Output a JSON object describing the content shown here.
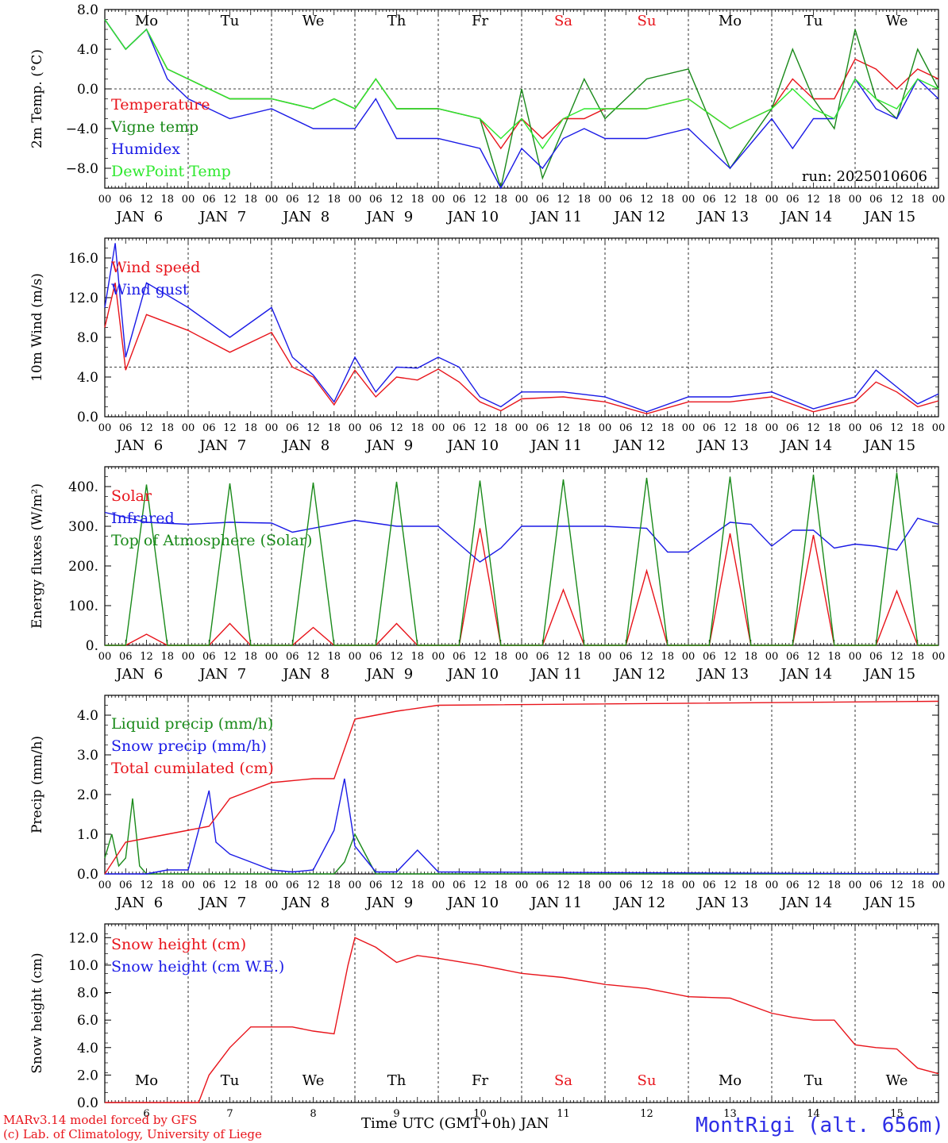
{
  "colors": {
    "red": "#e8141b",
    "green": "#1a8a1a",
    "blue": "#1a1ae6",
    "lightgreen": "#2ee82e",
    "grid": "#000000"
  },
  "time_axis": {
    "hour_ticks": [
      "00",
      "06",
      "12",
      "18"
    ],
    "date_labels": [
      "JAN  6",
      "JAN  7",
      "JAN  8",
      "JAN  9",
      "JAN 10",
      "JAN 11",
      "JAN 12",
      "JAN 13",
      "JAN 14",
      "JAN 15"
    ],
    "weekdays": [
      "Mo",
      "Tu",
      "We",
      "Th",
      "Fr",
      "Sa",
      "Su",
      "Mo",
      "Tu",
      "We"
    ],
    "weekday_colors": [
      "#000000",
      "#000000",
      "#000000",
      "#000000",
      "#000000",
      "#e8141b",
      "#e8141b",
      "#000000",
      "#000000",
      "#000000"
    ],
    "bottom_days": [
      "6",
      "7",
      "8",
      "9",
      "10",
      "11",
      "12",
      "13",
      "14",
      "15"
    ],
    "xlabel": "Time UTC (GMT+0h) JAN"
  },
  "footer": {
    "credit_line1": "MARv3.14 model forced by GFS",
    "credit_line2": "(c) Lab. of Climatology, University of Liege",
    "station": "MontRigi (alt. 656m)"
  },
  "chart_data": [
    {
      "type": "line",
      "ylabel": "2m Temp. (°C)",
      "ylim": [
        -10,
        8
      ],
      "yticks": [
        "8.0",
        "4.0",
        "0.0",
        "−4.0",
        "−8.0"
      ],
      "ytick_values": [
        8,
        4,
        0,
        -4,
        -8
      ],
      "run_label": "run: 2025010606",
      "dashed_ref": 0,
      "series": [
        {
          "name": "Temperature",
          "color": "red",
          "x": [
            0,
            6,
            12,
            18,
            24,
            36,
            48,
            60,
            66,
            72,
            78,
            84,
            96,
            108,
            114,
            120,
            126,
            132,
            138,
            144,
            156,
            168,
            180,
            192,
            198,
            204,
            210,
            216,
            222,
            228,
            234,
            240
          ],
          "y": [
            7,
            4,
            6,
            2,
            1,
            -1,
            -1,
            -2,
            -1,
            -2,
            1,
            -2,
            -2,
            -3,
            -6,
            -3,
            -5,
            -3,
            -3,
            -2,
            -2,
            -1,
            -4,
            -2,
            1,
            -1,
            -1,
            3,
            2,
            0,
            2,
            1
          ]
        },
        {
          "name": "Vigne temp",
          "color": "green",
          "x": [
            0,
            6,
            12,
            18,
            24,
            36,
            48,
            60,
            66,
            72,
            78,
            84,
            96,
            108,
            114,
            120,
            126,
            132,
            138,
            144,
            156,
            168,
            180,
            192,
            198,
            204,
            210,
            216,
            222,
            228,
            234,
            240
          ],
          "y": [
            7,
            4,
            6,
            2,
            1,
            -1,
            -1,
            -2,
            -1,
            -2,
            1,
            -2,
            -2,
            -3,
            -10,
            0,
            -9,
            -4,
            1,
            -3,
            1,
            2,
            -8,
            -2,
            4,
            -1,
            -4,
            6,
            -1,
            -3,
            4,
            0
          ]
        },
        {
          "name": "Humidex",
          "color": "blue",
          "x": [
            0,
            6,
            12,
            18,
            24,
            36,
            48,
            60,
            66,
            72,
            78,
            84,
            96,
            108,
            114,
            120,
            126,
            132,
            138,
            144,
            156,
            168,
            180,
            192,
            198,
            204,
            210,
            216,
            222,
            228,
            234,
            240
          ],
          "y": [
            7,
            4,
            6,
            1,
            -1,
            -3,
            -2,
            -4,
            -4,
            -4,
            -1,
            -5,
            -5,
            -6,
            -10,
            -6,
            -8,
            -5,
            -4,
            -5,
            -5,
            -4,
            -8,
            -3,
            -6,
            -3,
            -3,
            1,
            -2,
            -3,
            1,
            -1
          ]
        },
        {
          "name": "DewPoint Temp",
          "color": "lightgreen",
          "x": [
            0,
            6,
            12,
            18,
            24,
            36,
            48,
            60,
            66,
            72,
            78,
            84,
            96,
            108,
            114,
            120,
            126,
            132,
            138,
            144,
            156,
            168,
            180,
            192,
            198,
            204,
            210,
            216,
            222,
            228,
            234,
            240
          ],
          "y": [
            7,
            4,
            6,
            2,
            1,
            -1,
            -1,
            -2,
            -1,
            -2,
            1,
            -2,
            -2,
            -3,
            -5,
            -3,
            -6,
            -3,
            -2,
            -2,
            -2,
            -1,
            -4,
            -2,
            0,
            -2,
            -3,
            1,
            -1,
            -2,
            1,
            0
          ]
        }
      ]
    },
    {
      "type": "line",
      "ylabel": "10m Wind (m/s)",
      "ylim": [
        0,
        18
      ],
      "yticks": [
        "16.0",
        "12.0",
        "8.0",
        "4.0",
        "0.0"
      ],
      "ytick_values": [
        16,
        12,
        8,
        4,
        0
      ],
      "dashed_ref": 5,
      "series": [
        {
          "name": "Wind speed",
          "color": "red",
          "x": [
            0,
            3,
            6,
            12,
            24,
            36,
            48,
            54,
            60,
            66,
            72,
            78,
            84,
            90,
            96,
            102,
            108,
            114,
            120,
            132,
            144,
            156,
            168,
            180,
            192,
            204,
            216,
            222,
            228,
            234,
            240
          ],
          "y": [
            9,
            13.5,
            4.7,
            10.3,
            8.7,
            6.5,
            8.5,
            5,
            4,
            1.2,
            4.7,
            2,
            4,
            3.7,
            4.8,
            3.5,
            1.5,
            0.6,
            1.8,
            2,
            1.5,
            0.3,
            1.5,
            1.5,
            2,
            0.5,
            1.5,
            3.5,
            2.5,
            1,
            1.6
          ]
        },
        {
          "name": "Wind gust",
          "color": "blue",
          "x": [
            0,
            3,
            6,
            12,
            24,
            36,
            48,
            54,
            60,
            66,
            72,
            78,
            84,
            90,
            96,
            102,
            108,
            114,
            120,
            132,
            144,
            156,
            168,
            180,
            192,
            204,
            216,
            222,
            228,
            234,
            240
          ],
          "y": [
            11,
            17.5,
            6,
            13.5,
            11,
            8,
            11,
            6,
            4.2,
            1.5,
            6,
            2.5,
            5,
            4.9,
            6,
            5,
            2,
            1,
            2.5,
            2.5,
            2,
            0.5,
            2,
            2,
            2.5,
            0.8,
            2,
            4.7,
            3,
            1.3,
            2.3
          ]
        }
      ]
    },
    {
      "type": "line",
      "ylabel": "Energy fluxes (W/m²)",
      "ylim": [
        0,
        450
      ],
      "yticks": [
        "400.",
        "300.",
        "200.",
        "100.",
        "0."
      ],
      "ytick_values": [
        400,
        300,
        200,
        100,
        0
      ],
      "series": [
        {
          "name": "Solar",
          "color": "red",
          "x": [
            0,
            6,
            12,
            18,
            24,
            30,
            36,
            42,
            48,
            54,
            60,
            66,
            72,
            78,
            84,
            90,
            96,
            102,
            108,
            114,
            120,
            126,
            132,
            138,
            144,
            150,
            156,
            162,
            168,
            174,
            180,
            186,
            192,
            198,
            204,
            210,
            216,
            222,
            228,
            234,
            240
          ],
          "y": [
            0,
            0,
            28,
            0,
            0,
            0,
            55,
            0,
            0,
            0,
            45,
            0,
            0,
            0,
            55,
            0,
            0,
            0,
            295,
            0,
            0,
            0,
            140,
            0,
            0,
            0,
            188,
            0,
            0,
            0,
            282,
            0,
            0,
            0,
            278,
            0,
            0,
            0,
            137,
            0,
            0
          ]
        },
        {
          "name": "Infrared",
          "color": "blue",
          "x": [
            0,
            12,
            24,
            36,
            48,
            54,
            72,
            84,
            96,
            102,
            108,
            114,
            120,
            132,
            144,
            156,
            162,
            168,
            180,
            186,
            192,
            198,
            204,
            210,
            216,
            222,
            228,
            234,
            240
          ],
          "y": [
            335,
            310,
            305,
            310,
            308,
            285,
            315,
            300,
            300,
            255,
            210,
            245,
            300,
            300,
            300,
            295,
            235,
            235,
            310,
            305,
            250,
            290,
            290,
            245,
            255,
            250,
            240,
            320,
            305
          ]
        },
        {
          "name": "Top of Atmosphere (Solar)",
          "color": "green",
          "x": [
            0,
            6,
            12,
            18,
            24,
            30,
            36,
            42,
            48,
            54,
            60,
            66,
            72,
            78,
            84,
            90,
            96,
            102,
            108,
            114,
            120,
            126,
            132,
            138,
            144,
            150,
            156,
            162,
            168,
            174,
            180,
            186,
            192,
            198,
            204,
            210,
            216,
            222,
            228,
            234,
            240
          ],
          "y": [
            0,
            0,
            405,
            0,
            0,
            0,
            408,
            0,
            0,
            0,
            410,
            0,
            0,
            0,
            412,
            0,
            0,
            0,
            415,
            0,
            0,
            0,
            418,
            0,
            0,
            0,
            422,
            0,
            0,
            0,
            425,
            0,
            0,
            0,
            430,
            0,
            0,
            0,
            435,
            0,
            0
          ]
        }
      ]
    },
    {
      "type": "line",
      "ylabel": "Precip (mm/h)",
      "ylim": [
        0,
        4.5
      ],
      "yticks": [
        "4.0",
        "3.0",
        "2.0",
        "1.0",
        "0.0"
      ],
      "ytick_values": [
        4,
        3,
        2,
        1,
        0
      ],
      "series": [
        {
          "name": "Liquid precip (mm/h)",
          "color": "green",
          "x": [
            0,
            2,
            4,
            6,
            8,
            10,
            12,
            18,
            24,
            66,
            69,
            72,
            75,
            78,
            84,
            240
          ],
          "y": [
            0.4,
            1,
            0.2,
            0.4,
            1.9,
            0.2,
            0,
            0,
            0,
            0,
            0.3,
            1,
            0.5,
            0,
            0,
            0
          ]
        },
        {
          "name": "Snow precip (mm/h)",
          "color": "blue",
          "x": [
            0,
            12,
            18,
            24,
            30,
            32,
            36,
            42,
            48,
            54,
            60,
            66,
            69,
            72,
            78,
            84,
            90,
            96,
            240
          ],
          "y": [
            0,
            0,
            0.1,
            0.1,
            2.1,
            0.8,
            0.5,
            0.3,
            0.1,
            0.05,
            0.1,
            1.1,
            2.4,
            0.7,
            0.05,
            0.05,
            0.6,
            0.05,
            0
          ]
        },
        {
          "name": "Total cumulated (cm)",
          "color": "red",
          "x": [
            0,
            6,
            12,
            24,
            30,
            36,
            48,
            60,
            66,
            72,
            78,
            84,
            96,
            240
          ],
          "y": [
            0,
            0.8,
            0.9,
            1.1,
            1.2,
            1.9,
            2.3,
            2.4,
            2.4,
            3.9,
            4.0,
            4.1,
            4.25,
            4.35
          ]
        }
      ]
    },
    {
      "type": "line",
      "ylabel": "Snow height (cm)",
      "ylim": [
        0,
        13
      ],
      "yticks": [
        "12.0",
        "10.0",
        "8.0",
        "6.0",
        "4.0",
        "2.0",
        "0.0"
      ],
      "ytick_values": [
        12,
        10,
        8,
        6,
        4,
        2,
        0
      ],
      "series": [
        {
          "name": "Snow height (cm)",
          "color": "red",
          "x": [
            0,
            27,
            30,
            36,
            42,
            48,
            54,
            60,
            66,
            70,
            72,
            78,
            84,
            90,
            96,
            108,
            120,
            132,
            144,
            156,
            168,
            180,
            192,
            198,
            204,
            210,
            216,
            222,
            228,
            234,
            240
          ],
          "y": [
            0,
            0,
            2,
            4,
            5.5,
            5.5,
            5.5,
            5.2,
            5.0,
            10,
            12,
            11.3,
            10.2,
            10.7,
            10.5,
            10,
            9.4,
            9.1,
            8.6,
            8.3,
            7.7,
            7.6,
            6.5,
            6.2,
            6.0,
            6.0,
            4.2,
            4.0,
            3.9,
            2.5,
            2.1
          ]
        },
        {
          "name": "Snow height (cm W.E.)",
          "color": "blue",
          "x": [],
          "y": []
        }
      ]
    }
  ]
}
